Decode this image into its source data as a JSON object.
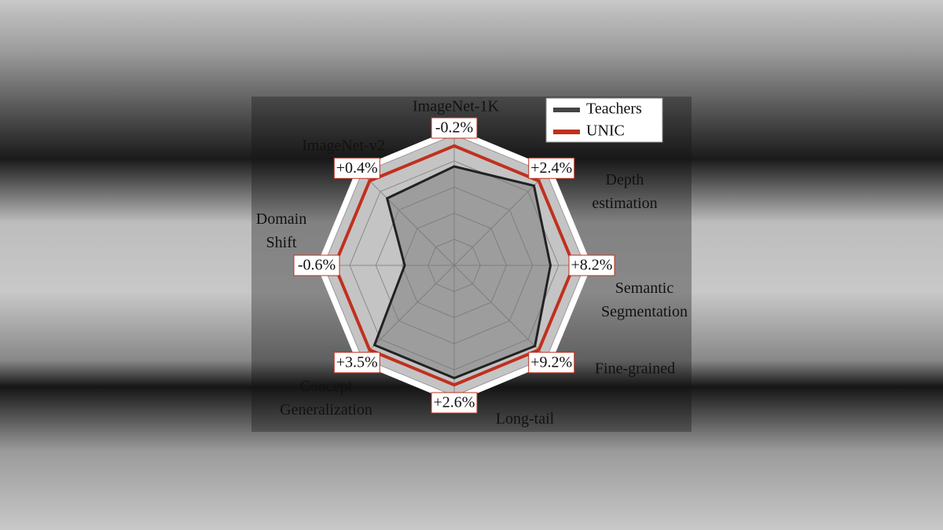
{
  "chart_data": {
    "type": "radar",
    "categories": [
      "ImageNet-1K",
      "Depth estimation",
      "Semantic Segmentation",
      "Fine-grained",
      "Long-tail",
      "Concept Generalization",
      "Domain Shift",
      "ImageNet-v2"
    ],
    "delta_labels": [
      "-0.2%",
      "+2.4%",
      "+8.2%",
      "+9.2%",
      "+2.6%",
      "+3.5%",
      "-0.6%",
      "+0.4%"
    ],
    "ylim": [
      0,
      1
    ],
    "grid": true,
    "legend": "upper right",
    "series": [
      {
        "name": "Teachers",
        "color": "#222222",
        "values": [
          0.72,
          0.82,
          0.7,
          0.83,
          0.82,
          0.82,
          0.36,
          0.69
        ]
      },
      {
        "name": "UNIC",
        "color": "#c0301e",
        "values": [
          0.87,
          0.87,
          0.87,
          0.87,
          0.87,
          0.87,
          0.87,
          0.87
        ]
      }
    ]
  }
}
